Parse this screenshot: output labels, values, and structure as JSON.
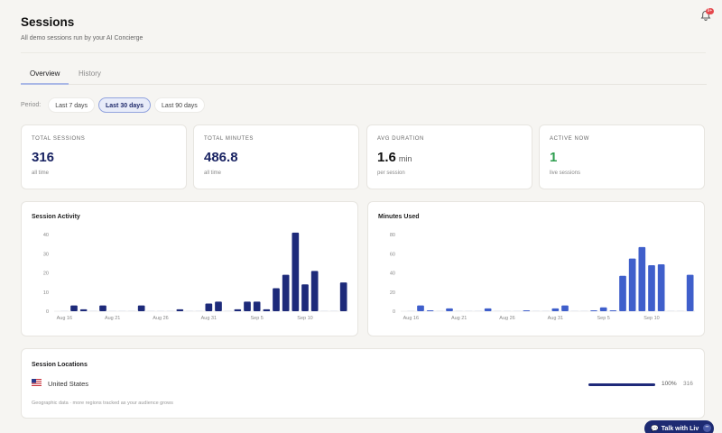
{
  "header": {
    "title": "Sessions",
    "subtitle": "All demo sessions run by your AI Concierge",
    "notification_badge": "9+"
  },
  "tabs": [
    {
      "label": "Overview",
      "active": true
    },
    {
      "label": "History",
      "active": false
    }
  ],
  "period": {
    "label": "Period:",
    "options": [
      "Last 7 days",
      "Last 30 days",
      "Last 90 days"
    ],
    "selected": "Last 30 days"
  },
  "stats": [
    {
      "label": "TOTAL SESSIONS",
      "value": "316",
      "unit": "",
      "sub": "all time",
      "color": "#1a2463"
    },
    {
      "label": "TOTAL MINUTES",
      "value": "486.8",
      "unit": "",
      "sub": "all time",
      "color": "#1a2463"
    },
    {
      "label": "AVG DURATION",
      "value": "1.6",
      "unit": "min",
      "sub": "per session",
      "color": "#111111"
    },
    {
      "label": "ACTIVE NOW",
      "value": "1",
      "unit": "",
      "sub": "live sessions",
      "color": "#2e9e4f"
    }
  ],
  "chart_data": [
    {
      "type": "bar",
      "title": "Session Activity",
      "ylim": [
        0,
        40
      ],
      "yticks": [
        0,
        10,
        20,
        30,
        40
      ],
      "x_ticks": [
        {
          "label": "Aug 16",
          "index": 0
        },
        {
          "label": "Aug 21",
          "index": 5
        },
        {
          "label": "Aug 26",
          "index": 10
        },
        {
          "label": "Aug 31",
          "index": 15
        },
        {
          "label": "Sep 5",
          "index": 20
        },
        {
          "label": "Sep 10",
          "index": 25
        }
      ],
      "values": [
        0,
        3,
        1,
        0,
        3,
        0,
        0,
        0,
        3,
        0,
        0,
        0,
        1,
        0,
        0,
        4,
        5,
        0,
        1,
        5,
        5,
        1,
        12,
        19,
        41,
        14,
        21,
        0,
        0,
        15
      ],
      "color": "#1d2a7a"
    },
    {
      "type": "bar",
      "title": "Minutes Used",
      "ylim": [
        0,
        80
      ],
      "yticks": [
        0,
        20,
        40,
        60,
        80
      ],
      "x_ticks": [
        {
          "label": "Aug 16",
          "index": 0
        },
        {
          "label": "Aug 21",
          "index": 5
        },
        {
          "label": "Aug 26",
          "index": 10
        },
        {
          "label": "Aug 31",
          "index": 15
        },
        {
          "label": "Sep 5",
          "index": 20
        },
        {
          "label": "Sep 10",
          "index": 25
        }
      ],
      "values": [
        0,
        6,
        1,
        0,
        3,
        0,
        0,
        0,
        3,
        0,
        0,
        0,
        1,
        0,
        0,
        3,
        6,
        0,
        0,
        1,
        4,
        1,
        37,
        55,
        67,
        48,
        49,
        0,
        0,
        38
      ],
      "color": "#3f5fcb"
    }
  ],
  "locations": {
    "title": "Session Locations",
    "items": [
      {
        "flag": "us-flag-icon",
        "name": "United States",
        "fraction": 1.0,
        "pct": "100%",
        "count": "316"
      }
    ],
    "note": "Geographic data · more regions tracked as your audience grows"
  },
  "talk": {
    "label": "Talk with Liv",
    "minimize": "–"
  }
}
